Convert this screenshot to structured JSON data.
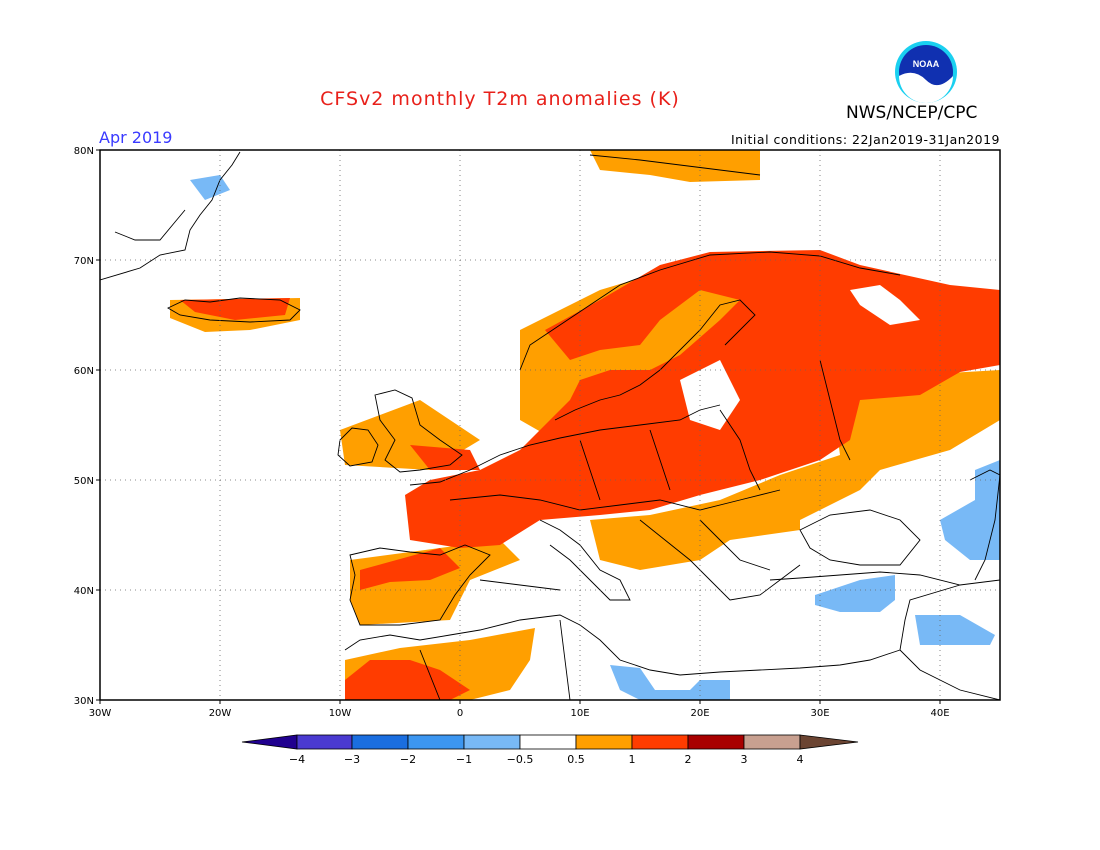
{
  "header": {
    "title": "CFSv2 monthly T2m anomalies (K)",
    "agency": "NWS/NCEP/CPC",
    "logo_text": "NOAA",
    "target_month": "Apr 2019",
    "initial_conditions": "Initial conditions: 22Jan2019-31Jan2019"
  },
  "map": {
    "projection": "lat-lon",
    "lon_range": [
      -30,
      45
    ],
    "lat_range": [
      30,
      80
    ],
    "grid": "dotted",
    "lat_ticks": [
      "80N",
      "70N",
      "60N",
      "50N",
      "40N",
      "30N"
    ],
    "lon_ticks": [
      "30W",
      "20W",
      "10W",
      "0",
      "10E",
      "20E",
      "30E",
      "40E"
    ],
    "field": "2m temperature anomaly (K)"
  },
  "colorbar": {
    "tick_labels": [
      "−4",
      "−3",
      "−2",
      "−1",
      "−0.5",
      "0.5",
      "1",
      "2",
      "3",
      "4"
    ],
    "colors": {
      "lt_minus4": "#20008f",
      "minus4_minus3": "#4a3ad0",
      "minus3_minus2": "#1a6ee0",
      "minus2_minus1": "#3c96f0",
      "minus1_minus05": "#78b9f6",
      "neutral": "#ffffff",
      "p05_1": "#ff9f00",
      "p1_2": "#ff3c00",
      "p2_3": "#a80000",
      "p3_4": "#c8a090",
      "gt4": "#6b4432"
    }
  }
}
